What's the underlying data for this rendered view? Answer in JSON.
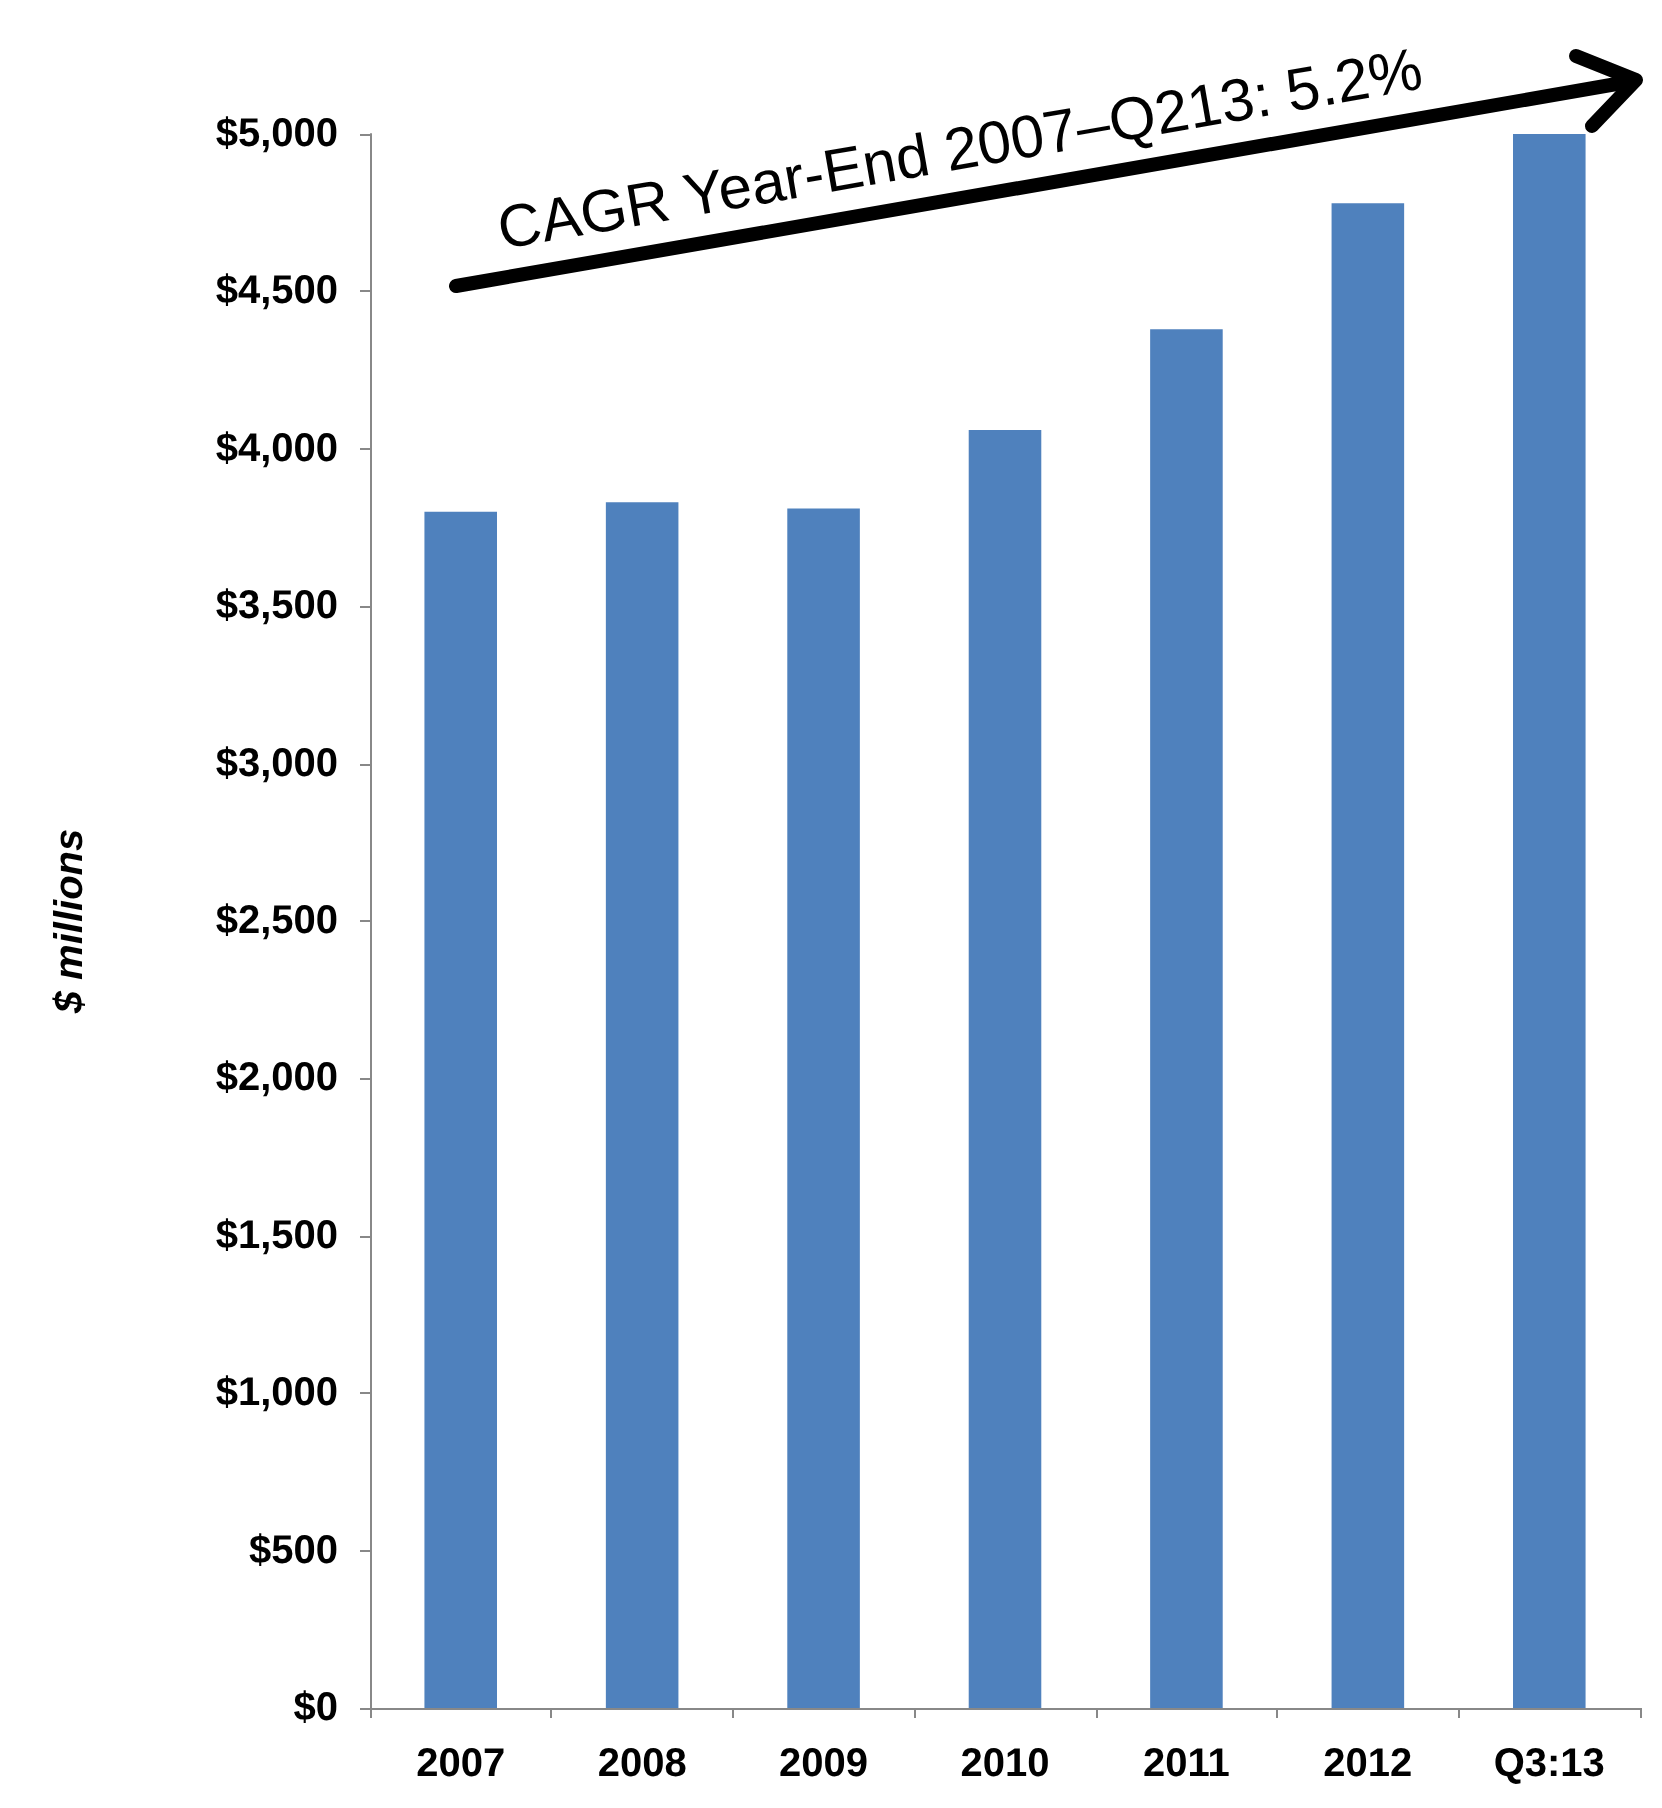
{
  "chart_data": {
    "type": "bar",
    "ylabel": "$ millions",
    "categories": [
      "2007",
      "2008",
      "2009",
      "2010",
      "2011",
      "2012",
      "Q3:13"
    ],
    "values": [
      3800,
      3830,
      3810,
      4060,
      4380,
      4780,
      5000
    ],
    "color": "#4f81bd",
    "ylim": [
      0,
      5000
    ],
    "yticks": [
      {
        "value": 0,
        "label": "$0"
      },
      {
        "value": 500,
        "label": "$500"
      },
      {
        "value": 1000,
        "label": "$1,000"
      },
      {
        "value": 1500,
        "label": "$1,500"
      },
      {
        "value": 2000,
        "label": "$2,000"
      },
      {
        "value": 2500,
        "label": "$2,500"
      },
      {
        "value": 3000,
        "label": "$3,000"
      },
      {
        "value": 3500,
        "label": "$3,500"
      },
      {
        "value": 4000,
        "label": "$4,000"
      },
      {
        "value": 4500,
        "label": "$4,500"
      },
      {
        "value": 5000,
        "label": "$5,000"
      }
    ],
    "annotations": [
      "CAGR Year-End 2007–Q213: 5.2%"
    ]
  }
}
